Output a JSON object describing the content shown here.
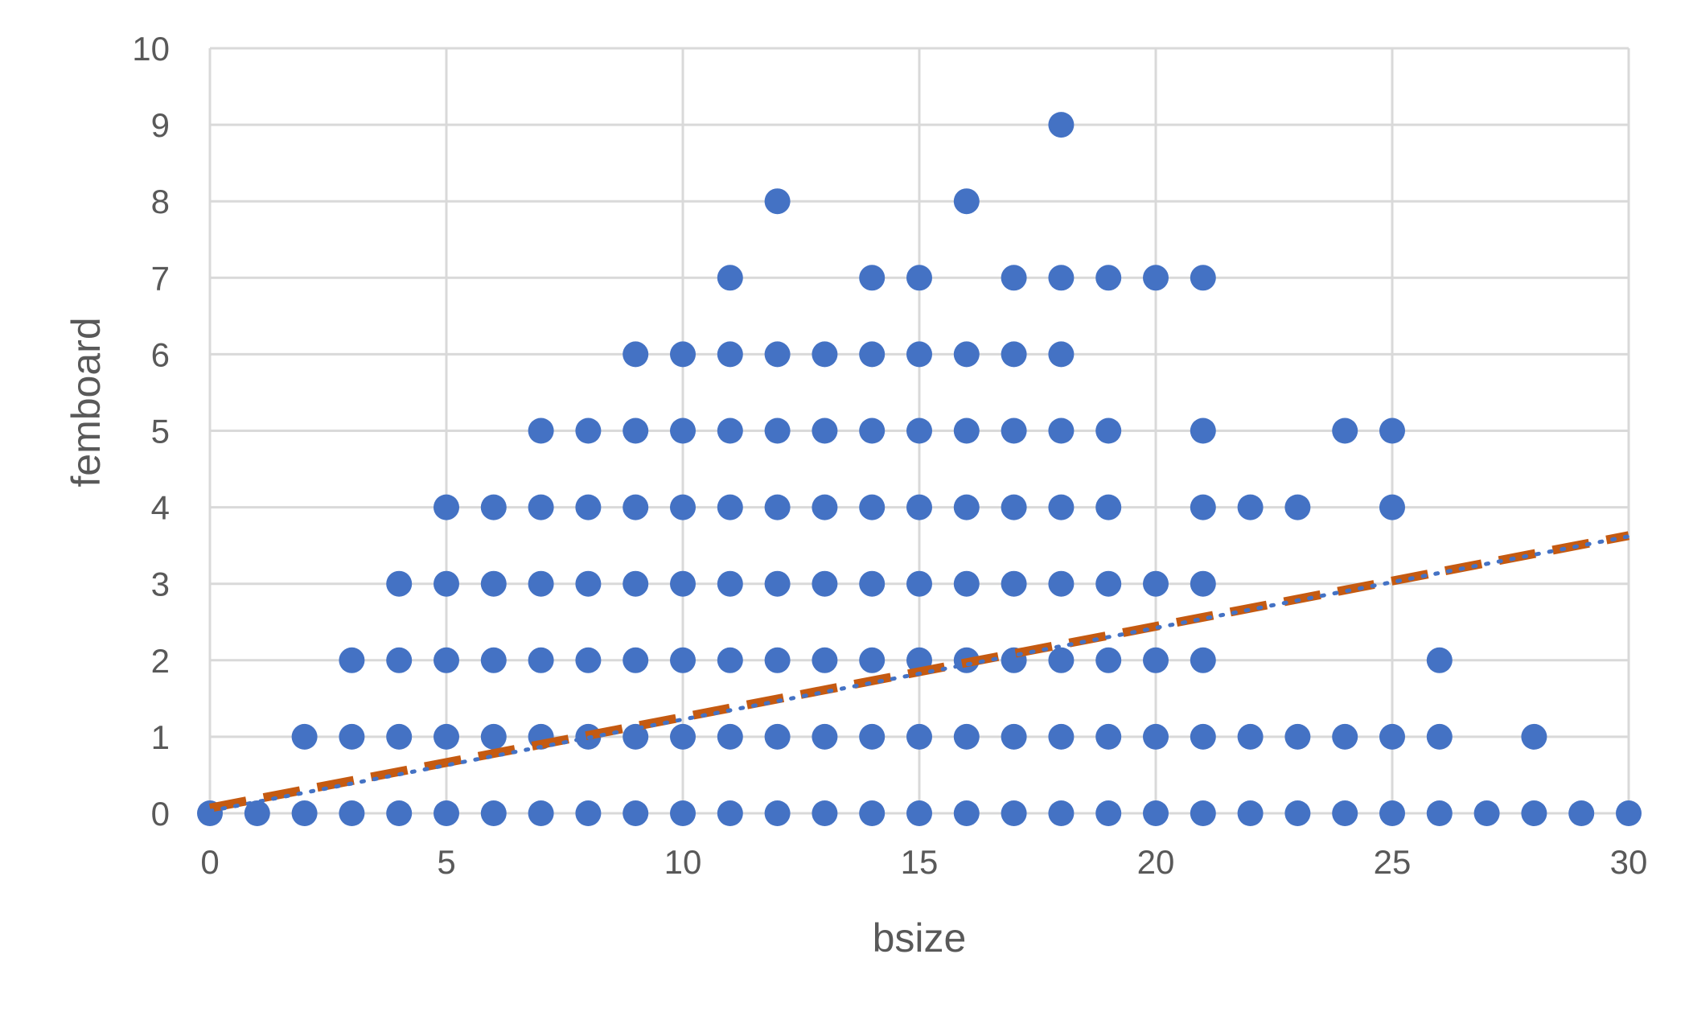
{
  "chart_data": {
    "type": "scatter",
    "xlabel": "bsize",
    "ylabel": "femboard",
    "xlim": [
      0,
      30
    ],
    "ylim": [
      0,
      10
    ],
    "x_ticks": [
      0,
      5,
      10,
      15,
      20,
      25,
      30
    ],
    "y_ticks": [
      0,
      1,
      2,
      3,
      4,
      5,
      6,
      7,
      8,
      9,
      10
    ],
    "grid": true,
    "legend": "none",
    "marker_color": "#4472C4",
    "points": [
      [
        0,
        0
      ],
      [
        1,
        0
      ],
      [
        2,
        0
      ],
      [
        3,
        0
      ],
      [
        4,
        0
      ],
      [
        5,
        0
      ],
      [
        6,
        0
      ],
      [
        7,
        0
      ],
      [
        8,
        0
      ],
      [
        9,
        0
      ],
      [
        10,
        0
      ],
      [
        11,
        0
      ],
      [
        12,
        0
      ],
      [
        13,
        0
      ],
      [
        14,
        0
      ],
      [
        15,
        0
      ],
      [
        16,
        0
      ],
      [
        17,
        0
      ],
      [
        18,
        0
      ],
      [
        19,
        0
      ],
      [
        20,
        0
      ],
      [
        21,
        0
      ],
      [
        22,
        0
      ],
      [
        23,
        0
      ],
      [
        24,
        0
      ],
      [
        25,
        0
      ],
      [
        26,
        0
      ],
      [
        27,
        0
      ],
      [
        28,
        0
      ],
      [
        29,
        0
      ],
      [
        30,
        0
      ],
      [
        2,
        1
      ],
      [
        3,
        1
      ],
      [
        4,
        1
      ],
      [
        5,
        1
      ],
      [
        6,
        1
      ],
      [
        7,
        1
      ],
      [
        8,
        1
      ],
      [
        9,
        1
      ],
      [
        10,
        1
      ],
      [
        11,
        1
      ],
      [
        12,
        1
      ],
      [
        13,
        1
      ],
      [
        14,
        1
      ],
      [
        15,
        1
      ],
      [
        16,
        1
      ],
      [
        17,
        1
      ],
      [
        18,
        1
      ],
      [
        19,
        1
      ],
      [
        20,
        1
      ],
      [
        21,
        1
      ],
      [
        22,
        1
      ],
      [
        23,
        1
      ],
      [
        24,
        1
      ],
      [
        25,
        1
      ],
      [
        26,
        1
      ],
      [
        28,
        1
      ],
      [
        3,
        2
      ],
      [
        4,
        2
      ],
      [
        5,
        2
      ],
      [
        6,
        2
      ],
      [
        7,
        2
      ],
      [
        8,
        2
      ],
      [
        9,
        2
      ],
      [
        10,
        2
      ],
      [
        11,
        2
      ],
      [
        12,
        2
      ],
      [
        13,
        2
      ],
      [
        14,
        2
      ],
      [
        15,
        2
      ],
      [
        16,
        2
      ],
      [
        17,
        2
      ],
      [
        18,
        2
      ],
      [
        19,
        2
      ],
      [
        20,
        2
      ],
      [
        21,
        2
      ],
      [
        26,
        2
      ],
      [
        4,
        3
      ],
      [
        5,
        3
      ],
      [
        6,
        3
      ],
      [
        7,
        3
      ],
      [
        8,
        3
      ],
      [
        9,
        3
      ],
      [
        10,
        3
      ],
      [
        11,
        3
      ],
      [
        12,
        3
      ],
      [
        13,
        3
      ],
      [
        14,
        3
      ],
      [
        15,
        3
      ],
      [
        16,
        3
      ],
      [
        17,
        3
      ],
      [
        18,
        3
      ],
      [
        19,
        3
      ],
      [
        20,
        3
      ],
      [
        21,
        3
      ],
      [
        5,
        4
      ],
      [
        6,
        4
      ],
      [
        7,
        4
      ],
      [
        8,
        4
      ],
      [
        9,
        4
      ],
      [
        10,
        4
      ],
      [
        11,
        4
      ],
      [
        12,
        4
      ],
      [
        13,
        4
      ],
      [
        14,
        4
      ],
      [
        15,
        4
      ],
      [
        16,
        4
      ],
      [
        17,
        4
      ],
      [
        18,
        4
      ],
      [
        19,
        4
      ],
      [
        21,
        4
      ],
      [
        22,
        4
      ],
      [
        23,
        4
      ],
      [
        25,
        4
      ],
      [
        7,
        5
      ],
      [
        8,
        5
      ],
      [
        9,
        5
      ],
      [
        10,
        5
      ],
      [
        11,
        5
      ],
      [
        12,
        5
      ],
      [
        13,
        5
      ],
      [
        14,
        5
      ],
      [
        15,
        5
      ],
      [
        16,
        5
      ],
      [
        17,
        5
      ],
      [
        18,
        5
      ],
      [
        19,
        5
      ],
      [
        21,
        5
      ],
      [
        24,
        5
      ],
      [
        25,
        5
      ],
      [
        9,
        6
      ],
      [
        10,
        6
      ],
      [
        11,
        6
      ],
      [
        12,
        6
      ],
      [
        13,
        6
      ],
      [
        14,
        6
      ],
      [
        15,
        6
      ],
      [
        16,
        6
      ],
      [
        17,
        6
      ],
      [
        18,
        6
      ],
      [
        11,
        7
      ],
      [
        14,
        7
      ],
      [
        15,
        7
      ],
      [
        17,
        7
      ],
      [
        18,
        7
      ],
      [
        19,
        7
      ],
      [
        20,
        7
      ],
      [
        21,
        7
      ],
      [
        12,
        8
      ],
      [
        16,
        8
      ],
      [
        18,
        9
      ]
    ],
    "trend_lines": [
      {
        "style": "dashed",
        "color": "#C55A11",
        "x": [
          0,
          30
        ],
        "y": [
          0.07,
          3.63
        ]
      },
      {
        "style": "dotted",
        "color": "#4472C4",
        "x": [
          0,
          30
        ],
        "y": [
          0.03,
          3.62
        ]
      }
    ]
  }
}
